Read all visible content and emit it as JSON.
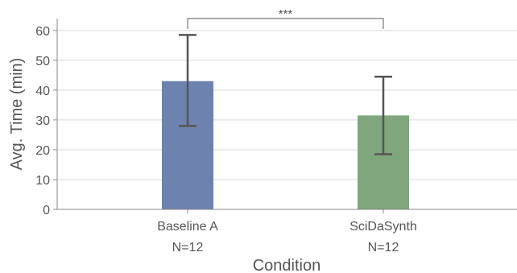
{
  "chart_data": {
    "type": "bar",
    "title": "",
    "xlabel": "Condition",
    "ylabel": "Avg. Time (min)",
    "ylim": [
      0,
      64
    ],
    "yticks": [
      0,
      10,
      20,
      30,
      40,
      50,
      60
    ],
    "grid": "horizontal",
    "categories": [
      "Baseline A",
      "SciDaSynth"
    ],
    "sample_sizes": [
      "N=12",
      "N=12"
    ],
    "values": [
      43,
      31.5
    ],
    "error_low": [
      28,
      18.5
    ],
    "error_high": [
      58.5,
      44.5
    ],
    "bar_colors": [
      "#6d82ae",
      "#7fa67c"
    ],
    "significance": {
      "between": [
        0,
        1
      ],
      "label": "***"
    }
  }
}
